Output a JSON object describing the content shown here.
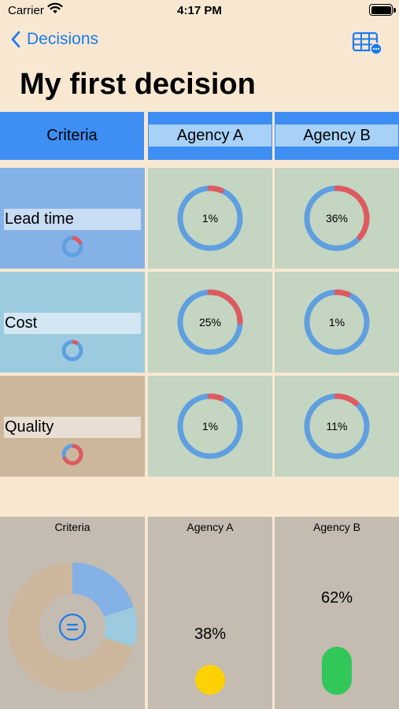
{
  "status_bar": {
    "carrier": "Carrier",
    "time": "4:17 PM"
  },
  "nav": {
    "back_label": "Decisions",
    "table_icon": "table-more-icon"
  },
  "title": "My first decision",
  "header": {
    "criteria": "Criteria",
    "agencies": [
      "Agency A",
      "Agency B"
    ]
  },
  "rows": [
    {
      "criterion": "Lead time",
      "color": "#85b2e6",
      "weight_pct": 20,
      "scores": [
        "1%",
        "36%"
      ],
      "score_values": [
        1,
        36
      ]
    },
    {
      "criterion": "Cost",
      "color": "#9ccbe0",
      "weight_pct": 10,
      "scores": [
        "25%",
        "1%"
      ],
      "score_values": [
        25,
        1
      ]
    },
    {
      "criterion": "Quality",
      "color": "#ccb79d",
      "weight_pct": 70,
      "scores": [
        "1%",
        "11%"
      ],
      "score_values": [
        1,
        11
      ]
    }
  ],
  "summary": {
    "criteria_label": "Criteria",
    "agencies": [
      {
        "label": "Agency A",
        "pct": "38%",
        "value": 38,
        "color": "#fed103"
      },
      {
        "label": "Agency B",
        "pct": "62%",
        "value": 62,
        "color": "#32c759"
      }
    ]
  },
  "colors": {
    "accent": "#1a7cf0",
    "header": "#3e8ef3",
    "header_pill": "#a7d1f7",
    "score_bg": "#c4d5c1",
    "ring": "#5f9fe0",
    "ring_fill": "#de5a5f",
    "summary_bg": "#c4bbb1"
  },
  "chart_data": {
    "type": "pie",
    "categories": [
      "Lead time",
      "Cost",
      "Quality"
    ],
    "values": [
      20,
      10,
      70
    ]
  }
}
